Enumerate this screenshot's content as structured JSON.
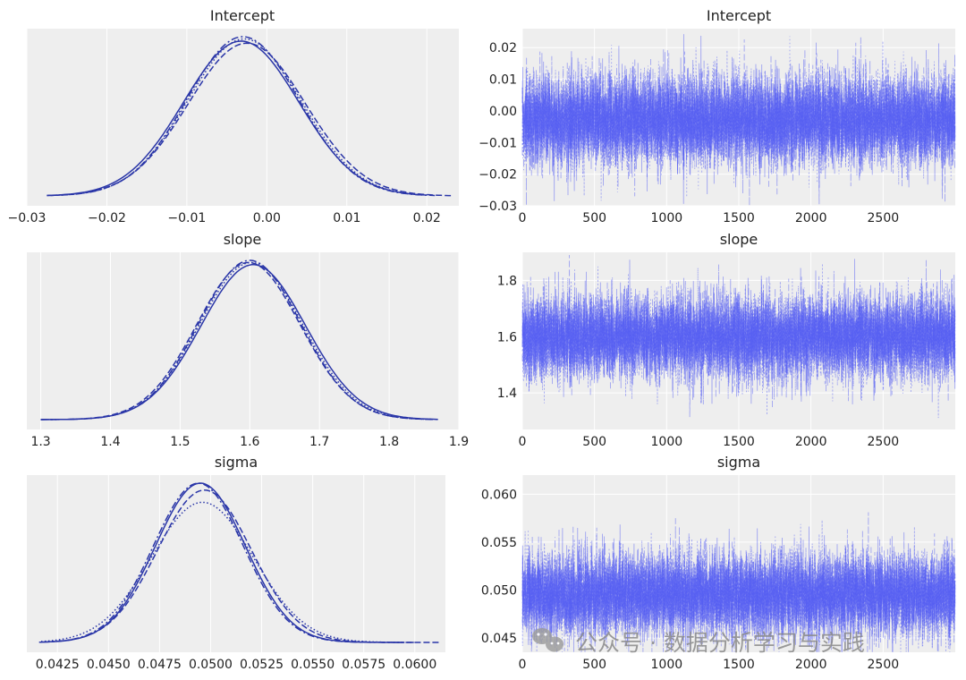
{
  "figure": {
    "description_free": true
  },
  "colors": {
    "panel_bg": "#eeeeee",
    "grid": "#ffffff",
    "kde_line": "#2a36a8",
    "trace_line": "#5159f2",
    "watermark": "#8a8a8a"
  },
  "watermark": {
    "icon": "wechat-icon",
    "text": "公众号 · 数据分析学习与实践"
  },
  "chart_data": [
    {
      "id": "intercept_kde",
      "type": "line",
      "title": "Intercept",
      "xlim": [
        -0.03,
        0.024
      ],
      "xticks": [
        -0.03,
        -0.02,
        -0.01,
        0.0,
        0.01,
        0.02
      ],
      "xtick_labels": [
        "−0.03",
        "−0.02",
        "−0.01",
        "0.00",
        "0.01",
        "0.02"
      ],
      "yticks": [],
      "ytick_labels": [],
      "chains": [
        {
          "style": "solid",
          "mean": -0.0032,
          "sd": 0.0072,
          "x_range": [
            -0.0275,
            0.02
          ]
        },
        {
          "style": "dashed",
          "mean": -0.0025,
          "sd": 0.0073,
          "x_range": [
            -0.027,
            0.023
          ]
        },
        {
          "style": "dashdot",
          "mean": -0.003,
          "sd": 0.007,
          "x_range": [
            -0.0275,
            0.021
          ]
        },
        {
          "style": "dotted",
          "mean": -0.0028,
          "sd": 0.0071,
          "x_range": [
            -0.0265,
            0.019
          ]
        }
      ]
    },
    {
      "id": "intercept_trace",
      "type": "line",
      "title": "Intercept",
      "xlim": [
        0,
        3000
      ],
      "ylim": [
        -0.03,
        0.026
      ],
      "xticks": [
        0,
        500,
        1000,
        1500,
        2000,
        2500
      ],
      "xtick_labels": [
        "0",
        "500",
        "1000",
        "1500",
        "2000",
        "2500"
      ],
      "yticks": [
        -0.03,
        -0.02,
        -0.01,
        0.0,
        0.01,
        0.02
      ],
      "ytick_labels": [
        "−0.03",
        "−0.02",
        "−0.01",
        "0.00",
        "0.01",
        "0.02"
      ],
      "draws": 3000,
      "chains": 4,
      "mean": -0.003,
      "sd": 0.0072
    },
    {
      "id": "slope_kde",
      "type": "line",
      "title": "slope",
      "xlim": [
        1.28,
        1.9
      ],
      "xticks": [
        1.3,
        1.4,
        1.5,
        1.6,
        1.7,
        1.8,
        1.9
      ],
      "xtick_labels": [
        "1.3",
        "1.4",
        "1.5",
        "1.6",
        "1.7",
        "1.8",
        "1.9"
      ],
      "yticks": [],
      "ytick_labels": [],
      "chains": [
        {
          "style": "solid",
          "mean": 1.605,
          "sd": 0.075,
          "x_range": [
            1.3,
            1.87
          ]
        },
        {
          "style": "dashed",
          "mean": 1.598,
          "sd": 0.074,
          "x_range": [
            1.3,
            1.87
          ]
        },
        {
          "style": "dashdot",
          "mean": 1.6,
          "sd": 0.073,
          "x_range": [
            1.3,
            1.86
          ]
        },
        {
          "style": "dotted",
          "mean": 1.602,
          "sd": 0.074,
          "x_range": [
            1.31,
            1.86
          ]
        }
      ]
    },
    {
      "id": "slope_trace",
      "type": "line",
      "title": "slope",
      "xlim": [
        0,
        3000
      ],
      "ylim": [
        1.27,
        1.9
      ],
      "xticks": [
        0,
        500,
        1000,
        1500,
        2000,
        2500
      ],
      "xtick_labels": [
        "0",
        "500",
        "1000",
        "1500",
        "2000",
        "2500"
      ],
      "yticks": [
        1.4,
        1.6,
        1.8
      ],
      "ytick_labels": [
        "1.4",
        "1.6",
        "1.8"
      ],
      "draws": 3000,
      "chains": 4,
      "mean": 1.6,
      "sd": 0.075
    },
    {
      "id": "sigma_kde",
      "type": "line",
      "title": "sigma",
      "xlim": [
        0.041,
        0.0615
      ],
      "xticks": [
        0.0425,
        0.045,
        0.0475,
        0.05,
        0.0525,
        0.055,
        0.0575,
        0.06
      ],
      "xtick_labels": [
        "0.0425",
        "0.0450",
        "0.0475",
        "0.0500",
        "0.0525",
        "0.0550",
        "0.0575",
        "0.0600"
      ],
      "yticks": [],
      "ytick_labels": [],
      "chains": [
        {
          "style": "solid",
          "mean": 0.0495,
          "sd": 0.0022,
          "x_range": [
            0.0416,
            0.0595
          ]
        },
        {
          "style": "dashed",
          "mean": 0.0497,
          "sd": 0.0023,
          "x_range": [
            0.042,
            0.0612
          ]
        },
        {
          "style": "dashdot",
          "mean": 0.0494,
          "sd": 0.0022,
          "x_range": [
            0.0418,
            0.06
          ]
        },
        {
          "style": "dotted",
          "mean": 0.0496,
          "sd": 0.0025,
          "x_range": [
            0.0417,
            0.0595
          ]
        }
      ]
    },
    {
      "id": "sigma_trace",
      "type": "line",
      "title": "sigma",
      "xlim": [
        0,
        3000
      ],
      "ylim": [
        0.0435,
        0.062
      ],
      "xticks": [
        0,
        500,
        1000,
        1500,
        2000,
        2500
      ],
      "xtick_labels": [
        "0",
        "500",
        "1000",
        "1500",
        "2000",
        "2500"
      ],
      "yticks": [
        0.045,
        0.05,
        0.055,
        0.06
      ],
      "ytick_labels": [
        "0.045",
        "0.050",
        "0.055",
        "0.060"
      ],
      "draws": 3000,
      "chains": 4,
      "mean": 0.0495,
      "sd": 0.0022
    }
  ]
}
